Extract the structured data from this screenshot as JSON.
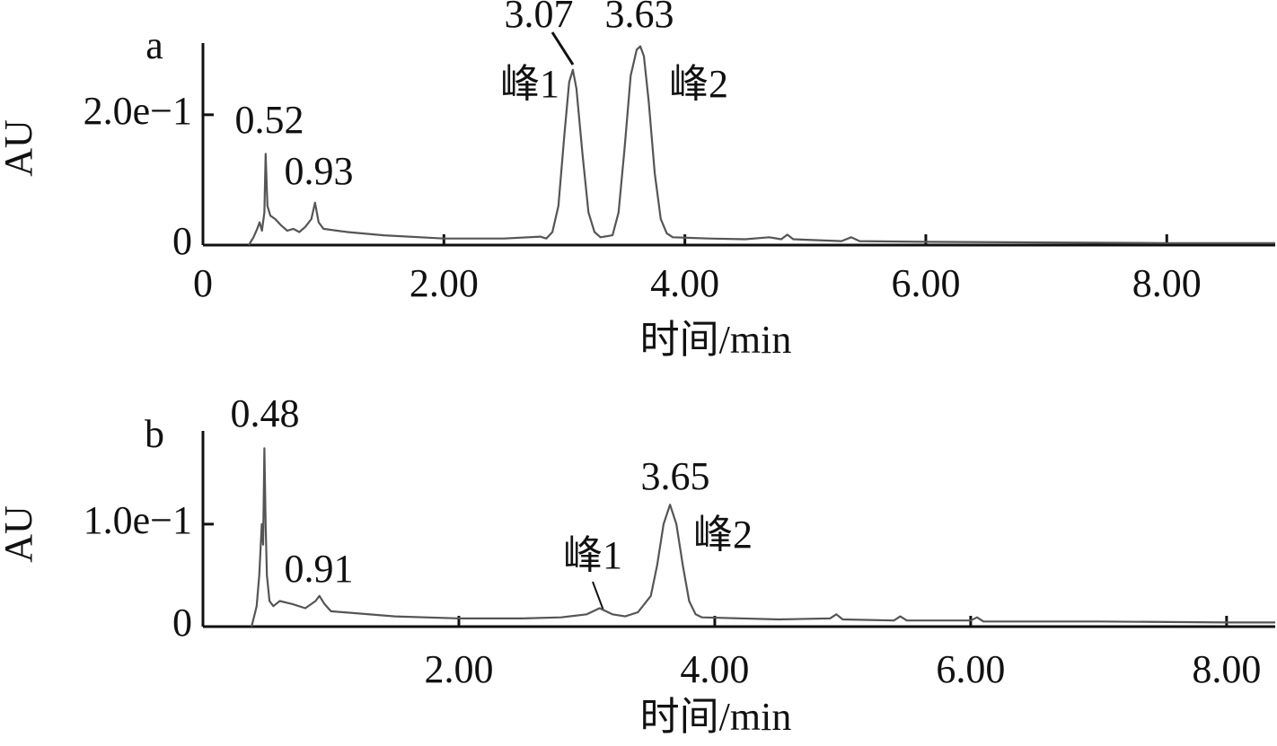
{
  "chart_data": [
    {
      "type": "line",
      "panel": "a",
      "xlabel": "时间/min",
      "ylabel": "AU",
      "color": "#555555",
      "xlim": [
        0,
        8.9
      ],
      "ylim": [
        0,
        0.31
      ],
      "xticks": [
        0,
        {
          "value": 2,
          "label": "2.00"
        },
        {
          "value": 4,
          "label": "4.00"
        },
        {
          "value": 6,
          "label": "6.00"
        },
        {
          "value": 8,
          "label": "8.00"
        }
      ],
      "yticks": [
        0,
        {
          "value": 0.2,
          "label": "2.0e−1"
        }
      ],
      "x": [
        0.38,
        0.42,
        0.45,
        0.47,
        0.49,
        0.51,
        0.52,
        0.535,
        0.56,
        0.6,
        0.65,
        0.7,
        0.75,
        0.8,
        0.85,
        0.9,
        0.93,
        0.96,
        1.0,
        1.2,
        1.5,
        2.0,
        2.5,
        2.8,
        2.85,
        2.9,
        2.95,
        3.0,
        3.04,
        3.07,
        3.1,
        3.15,
        3.2,
        3.25,
        3.3,
        3.4,
        3.45,
        3.5,
        3.55,
        3.6,
        3.63,
        3.66,
        3.7,
        3.75,
        3.8,
        3.85,
        3.9,
        4.2,
        4.5,
        4.7,
        4.8,
        4.85,
        4.9,
        5.3,
        5.38,
        5.45,
        6.0,
        7.0,
        8.0,
        8.9
      ],
      "y": [
        0.0,
        0.012,
        0.025,
        0.035,
        0.022,
        0.05,
        0.14,
        0.06,
        0.045,
        0.04,
        0.03,
        0.022,
        0.025,
        0.02,
        0.028,
        0.04,
        0.065,
        0.035,
        0.025,
        0.02,
        0.015,
        0.01,
        0.01,
        0.013,
        0.01,
        0.02,
        0.06,
        0.17,
        0.25,
        0.269,
        0.24,
        0.14,
        0.05,
        0.02,
        0.012,
        0.015,
        0.05,
        0.15,
        0.26,
        0.3,
        0.305,
        0.29,
        0.22,
        0.11,
        0.04,
        0.018,
        0.012,
        0.01,
        0.009,
        0.012,
        0.009,
        0.016,
        0.009,
        0.006,
        0.012,
        0.006,
        0.005,
        0.004,
        0.003,
        0.003
      ],
      "annotations": [
        "0.52",
        "0.93",
        "3.07",
        "3.63",
        "峰1",
        "峰2"
      ]
    },
    {
      "type": "line",
      "panel": "b",
      "xlabel": "时间/min",
      "ylabel": "AU",
      "color": "#555555",
      "xlim": [
        0,
        8.38
      ],
      "ylim": [
        0,
        0.191
      ],
      "xticks": [
        {
          "value": 2,
          "label": "2.00"
        },
        {
          "value": 4,
          "label": "4.00"
        },
        {
          "value": 6,
          "label": "6.00"
        },
        {
          "value": 8,
          "label": "8.00"
        }
      ],
      "yticks": [
        0,
        {
          "value": 0.1,
          "label": "1.0e−1"
        }
      ],
      "x": [
        0.38,
        0.4,
        0.42,
        0.44,
        0.46,
        0.47,
        0.48,
        0.49,
        0.5,
        0.52,
        0.55,
        0.6,
        0.7,
        0.8,
        0.88,
        0.91,
        0.95,
        1.0,
        1.5,
        2.0,
        2.5,
        2.8,
        3.0,
        3.1,
        3.2,
        3.3,
        3.4,
        3.5,
        3.55,
        3.6,
        3.65,
        3.7,
        3.75,
        3.8,
        3.85,
        3.9,
        4.5,
        4.9,
        4.95,
        5.0,
        5.4,
        5.45,
        5.5,
        6.0,
        6.05,
        6.1,
        7.0,
        8.0,
        8.38
      ],
      "y": [
        0.0,
        0.01,
        0.02,
        0.05,
        0.1,
        0.08,
        0.174,
        0.1,
        0.05,
        0.025,
        0.02,
        0.025,
        0.022,
        0.018,
        0.025,
        0.03,
        0.022,
        0.015,
        0.01,
        0.008,
        0.008,
        0.009,
        0.012,
        0.018,
        0.012,
        0.01,
        0.014,
        0.03,
        0.06,
        0.1,
        0.119,
        0.1,
        0.06,
        0.025,
        0.012,
        0.009,
        0.007,
        0.008,
        0.012,
        0.007,
        0.006,
        0.01,
        0.006,
        0.006,
        0.009,
        0.005,
        0.005,
        0.004,
        0.004
      ],
      "annotations": [
        "0.48",
        "0.91",
        "峰1",
        "3.65",
        "峰2"
      ]
    }
  ]
}
